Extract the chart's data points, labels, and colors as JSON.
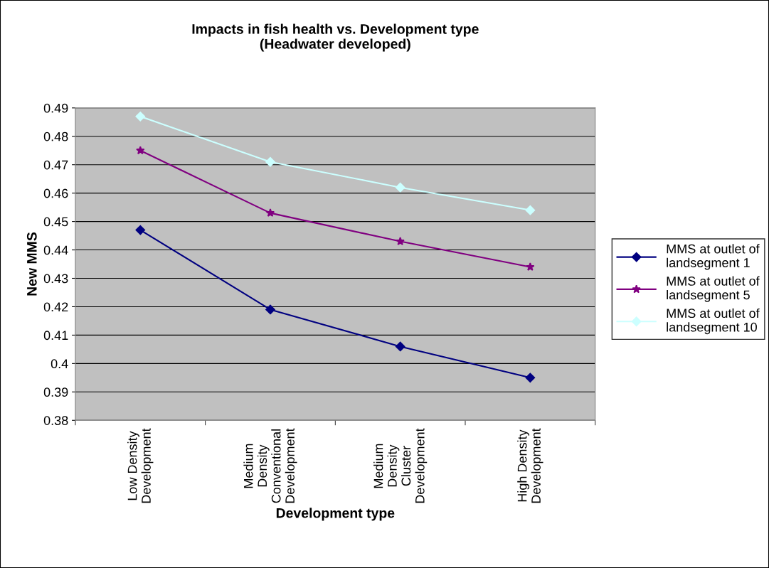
{
  "chart_data": {
    "type": "line",
    "title": "Impacts in fish health vs. Development type\n(Headwater developed)",
    "xlabel": "Development type",
    "ylabel": "New MMS",
    "categories": [
      "Low Density Development",
      "Medium Density Conventional Development",
      "Medium Density Cluster Development",
      "High Density Development"
    ],
    "series": [
      {
        "name": "MMS at outlet of landsegment 1",
        "color": "#000080",
        "marker": "diamond",
        "values": [
          0.447,
          0.419,
          0.406,
          0.395
        ]
      },
      {
        "name": "MMS at outlet of landsegment 5",
        "color": "#800080",
        "marker": "star",
        "values": [
          0.475,
          0.453,
          0.443,
          0.434
        ]
      },
      {
        "name": "MMS at outlet of landsegment 10",
        "color": "#ccffff",
        "marker": "diamond",
        "values": [
          0.487,
          0.471,
          0.462,
          0.454
        ]
      }
    ],
    "ylim": [
      0.38,
      0.49
    ],
    "yticks": [
      0.38,
      0.39,
      0.4,
      0.41,
      0.42,
      0.43,
      0.44,
      0.45,
      0.46,
      0.47,
      0.48,
      0.49
    ],
    "grid": "y",
    "legend": "right",
    "line_style": "solid"
  }
}
